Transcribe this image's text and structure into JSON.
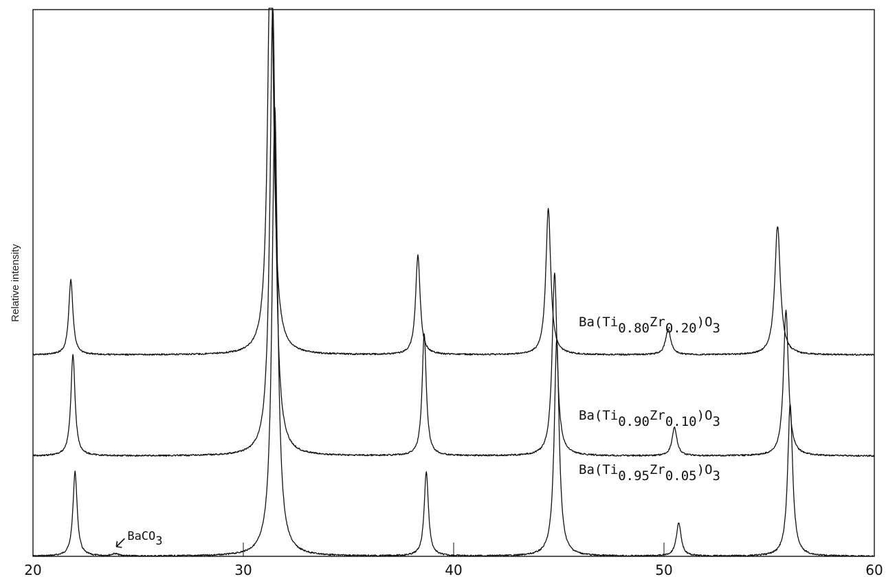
{
  "chart_data": {
    "type": "line",
    "xlabel": "",
    "ylabel": "Relative intensity",
    "xlim": [
      20,
      60
    ],
    "xticks": [
      "20",
      "30",
      "40",
      "50",
      "60"
    ],
    "grid": false,
    "legend": "inline labels at right of each trace",
    "series": [
      {
        "name": "Ba(Ti0.95Zr0.05)O3",
        "label_parts": [
          "Ba(Ti",
          "0.95",
          "Zr",
          "0.05",
          ")O",
          "3"
        ],
        "baseline": 0,
        "peaks": [
          {
            "x": 22.0,
            "h": 113,
            "w": 0.12
          },
          {
            "x": 31.5,
            "h": 600,
            "w": 0.16
          },
          {
            "x": 38.7,
            "h": 113,
            "w": 0.12
          },
          {
            "x": 44.9,
            "h": 290,
            "w": 0.14
          },
          {
            "x": 50.7,
            "h": 44,
            "w": 0.14
          },
          {
            "x": 56.0,
            "h": 204,
            "w": 0.14
          },
          {
            "x": 23.9,
            "h": 3,
            "w": 0.2
          }
        ]
      },
      {
        "name": "Ba(Ti0.90Zr0.10)O3",
        "label_parts": [
          "Ba(Ti",
          "0.90",
          "Zr",
          "0.10",
          ")O",
          "3"
        ],
        "baseline": 134,
        "peaks": [
          {
            "x": 21.9,
            "h": 135,
            "w": 0.12
          },
          {
            "x": 31.4,
            "h": 600,
            "w": 0.16
          },
          {
            "x": 38.6,
            "h": 162,
            "w": 0.12
          },
          {
            "x": 44.8,
            "h": 245,
            "w": 0.14
          },
          {
            "x": 50.5,
            "h": 38,
            "w": 0.14
          },
          {
            "x": 55.8,
            "h": 195,
            "w": 0.14
          }
        ]
      },
      {
        "name": "Ba(Ti0.80Zr0.20)O3",
        "label_parts": [
          "Ba(Ti",
          "0.80",
          "Zr",
          "0.20",
          ")O",
          "3"
        ],
        "baseline": 269,
        "peaks": [
          {
            "x": 21.8,
            "h": 100,
            "w": 0.12
          },
          {
            "x": 31.3,
            "h": 600,
            "w": 0.16
          },
          {
            "x": 38.3,
            "h": 133,
            "w": 0.13
          },
          {
            "x": 44.5,
            "h": 196,
            "w": 0.14
          },
          {
            "x": 50.2,
            "h": 34,
            "w": 0.15
          },
          {
            "x": 55.4,
            "h": 172,
            "w": 0.16
          }
        ]
      }
    ],
    "annotations": [
      {
        "text": "BaCO",
        "sub": "3",
        "x": 23.9,
        "series": "Ba(Ti0.95Zr0.05)O3"
      }
    ],
    "reference_ticks": [
      30,
      40,
      50
    ]
  }
}
